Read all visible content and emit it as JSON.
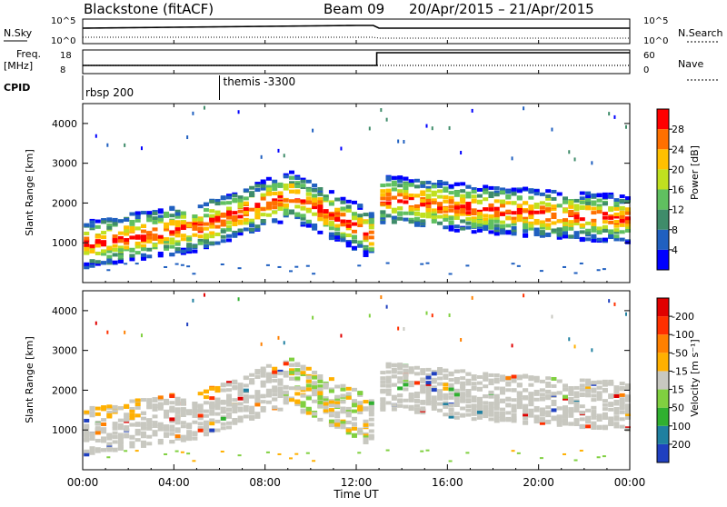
{
  "header": {
    "title": "Blackstone (fitACF)",
    "beam": "Beam 09",
    "date_range": "20/Apr/2015 – 21/Apr/2015"
  },
  "params": {
    "nsky_label": "N.Sky",
    "nsearch_label": "N.Search",
    "freq_label_1": "Freq.",
    "freq_label_2": "[MHz]",
    "nave_label": "Nave",
    "cpid_label": "CPID",
    "left_ticks_top": [
      "10^5",
      "10^0"
    ],
    "right_ticks_top": [
      "10^5",
      "10^0"
    ],
    "freq_ticks": [
      "18",
      "8"
    ],
    "nave_ticks": [
      "60",
      "0"
    ],
    "freq_step_hour": 12.9,
    "cpid_events": [
      {
        "label": "rbsp 200",
        "hour": 0.0
      },
      {
        "label": "themis -3300",
        "hour": 6.0
      }
    ]
  },
  "chart_data": [
    {
      "type": "heatmap",
      "name": "power",
      "ylabel": "Slant Range [km]",
      "ylim": [
        0,
        4500
      ],
      "yticks": [
        1000,
        2000,
        3000,
        4000
      ],
      "colorbar_label": "Power [dB]",
      "colorbar_ticks": [
        "4",
        "8",
        "12",
        "16",
        "20",
        "24",
        "28"
      ],
      "colorbar_colors": [
        "#0000ff",
        "#2060c0",
        "#3f8c6a",
        "#60c060",
        "#c0e020",
        "#ffc000",
        "#ff7000",
        "#ff0000"
      ]
    },
    {
      "type": "heatmap",
      "name": "velocity",
      "ylabel": "Slant Range [km]",
      "ylim": [
        0,
        4500
      ],
      "yticks": [
        1000,
        2000,
        3000,
        4000
      ],
      "colorbar_label": "Velocity [m s⁻¹]",
      "colorbar_ticks": [
        "200",
        "100",
        "50",
        "15",
        "-15",
        "-50",
        "-100",
        "-200"
      ],
      "colorbar_colors": [
        "#2040c0",
        "#2080a0",
        "#30b030",
        "#80d040",
        "#c8c8c0",
        "#ffb000",
        "#ff8000",
        "#ff3000",
        "#e00000"
      ]
    }
  ],
  "time_axis": {
    "label": "Time UT",
    "ticks": [
      "00:00",
      "04:00",
      "08:00",
      "12:00",
      "16:00",
      "20:00",
      "00:00"
    ],
    "hours": [
      0,
      4,
      8,
      12,
      16,
      20,
      24
    ]
  }
}
